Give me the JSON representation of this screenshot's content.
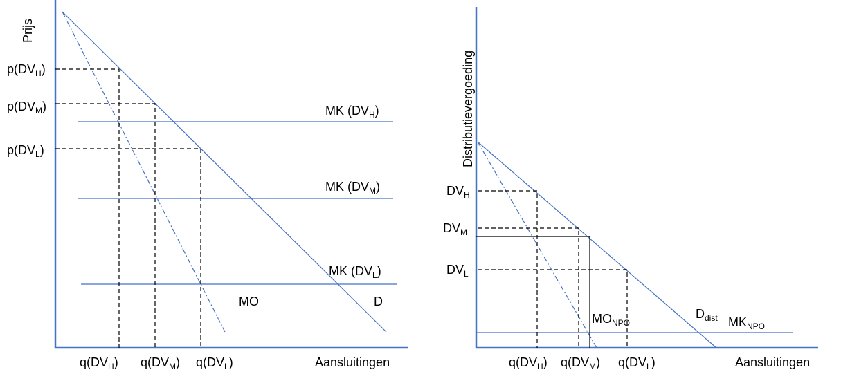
{
  "left": {
    "y_axis_label": "Prijs",
    "x_axis_label": "Aansluitingen",
    "price_labels": [
      {
        "main": "p(DV",
        "sub": "H",
        "end": ")"
      },
      {
        "main": "p(DV",
        "sub": "M",
        "end": ")"
      },
      {
        "main": "p(DV",
        "sub": "L",
        "end": ")"
      }
    ],
    "cost_labels": [
      {
        "main": "MK (DV",
        "sub": "H",
        "end": ")"
      },
      {
        "main": "MK (DV",
        "sub": "M",
        "end": ")"
      },
      {
        "main": "MK (DV",
        "sub": "L",
        "end": ")"
      }
    ],
    "quantity_labels": [
      {
        "main": "q(DV",
        "sub": "H",
        "end": ")"
      },
      {
        "main": "q(DV",
        "sub": "M",
        "end": ")"
      },
      {
        "main": "q(DV",
        "sub": "L",
        "end": ")"
      }
    ],
    "mo_label": "MO",
    "d_label": "D"
  },
  "right": {
    "y_axis_label": "Distributievergoeding",
    "x_axis_label": "Aansluitingen",
    "fee_labels": [
      {
        "main": "DV",
        "sub": "H"
      },
      {
        "main": "DV",
        "sub": "M"
      },
      {
        "main": "DV",
        "sub": "L"
      }
    ],
    "quantity_labels": [
      {
        "main": "q(DV",
        "sub": "H",
        "end": ")"
      },
      {
        "main": "q(DV",
        "sub": "M",
        "end": ")"
      },
      {
        "main": "q(DV",
        "sub": "L",
        "end": ")"
      }
    ],
    "mo_label": {
      "main": "MO",
      "sub": "NPO"
    },
    "d_label": {
      "main": "D",
      "sub": "dist"
    },
    "mk_label": {
      "main": "MK",
      "sub": "NPO"
    }
  }
}
